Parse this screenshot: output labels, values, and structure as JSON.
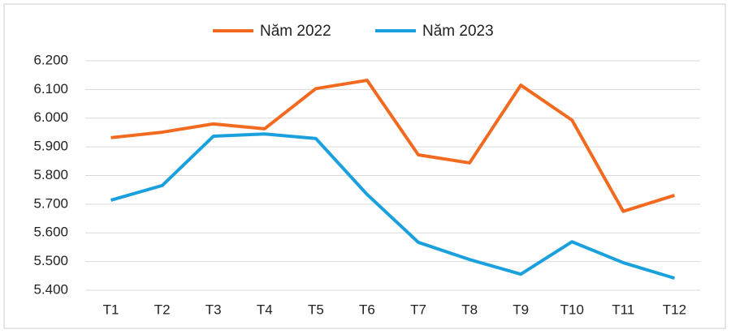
{
  "chart_data": {
    "type": "line",
    "categories": [
      "T1",
      "T2",
      "T3",
      "T4",
      "T5",
      "T6",
      "T7",
      "T8",
      "T9",
      "T10",
      "T11",
      "T12"
    ],
    "series": [
      {
        "name": "Năm 2022",
        "color": "#f26a1f",
        "values": [
          5932,
          5951,
          5980,
          5963,
          6103,
          6132,
          5872,
          5844,
          6115,
          5993,
          5675,
          5731
        ]
      },
      {
        "name": "Năm 2023",
        "color": "#1aa0dc",
        "values": [
          5714,
          5765,
          5937,
          5945,
          5929,
          5734,
          5567,
          5507,
          5456,
          5569,
          5496,
          5442
        ]
      }
    ],
    "ylim": [
      5400,
      6200
    ],
    "yticks": [
      {
        "value": 5400,
        "label": "5.400"
      },
      {
        "value": 5500,
        "label": "5.500"
      },
      {
        "value": 5600,
        "label": "5.600"
      },
      {
        "value": 5700,
        "label": "5.700"
      },
      {
        "value": 5800,
        "label": "5.800"
      },
      {
        "value": 5900,
        "label": "5.900"
      },
      {
        "value": 6000,
        "label": "6.000"
      },
      {
        "value": 6100,
        "label": "6.100"
      },
      {
        "value": 6200,
        "label": "6.200"
      }
    ],
    "grid": true,
    "legend": "top"
  }
}
